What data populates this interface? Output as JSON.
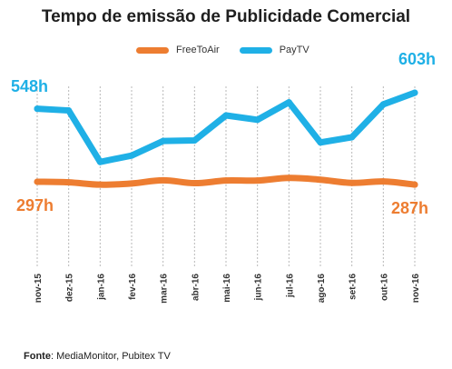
{
  "chart_data": {
    "type": "line",
    "title": "Tempo de emissão de Publicidade Comercial",
    "categories": [
      "nov-15",
      "dez-15",
      "jan-16",
      "fev-16",
      "mar-16",
      "abr-16",
      "mai-16",
      "jun-16",
      "jul-16",
      "ago-16",
      "set-16",
      "out-16",
      "nov-16"
    ],
    "series": [
      {
        "name": "FreeToAir",
        "color": "#ED7D31",
        "values": [
          297,
          295,
          287,
          291,
          302,
          292,
          301,
          301,
          310,
          304,
          293,
          298,
          287
        ]
      },
      {
        "name": "PayTV",
        "color": "#1FB0E6",
        "values": [
          548,
          542,
          365,
          387,
          437,
          439,
          525,
          510,
          570,
          432,
          450,
          563,
          603
        ]
      }
    ],
    "ylim": [
      0,
      750
    ],
    "grid": "vertical-dotted",
    "legend_position": "top",
    "annotations": [
      {
        "text": "548h",
        "series": "PayTV",
        "color": "#1FB0E6"
      },
      {
        "text": "603h",
        "series": "PayTV",
        "color": "#1FB0E6"
      },
      {
        "text": "297h",
        "series": "FreeToAir",
        "color": "#ED7D31"
      },
      {
        "text": "287h",
        "series": "FreeToAir",
        "color": "#ED7D31"
      }
    ]
  },
  "source": {
    "label": "Fonte",
    "text": ": MediaMonitor, Pubitex TV"
  }
}
